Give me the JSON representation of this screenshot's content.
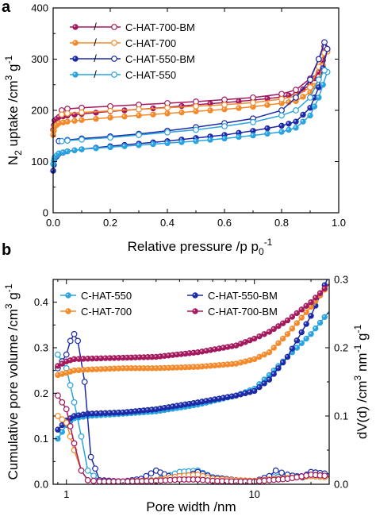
{
  "panel_labels": [
    "a",
    "b"
  ],
  "colors": {
    "c550": "#29a3e0",
    "c550bm": "#1c2aa6",
    "c700": "#f4892a",
    "c700bm": "#a3195e"
  },
  "chart_data": [
    {
      "type": "line",
      "panel": "a",
      "xlabel": "Relative pressure /p p0-1",
      "xlabel_parts": {
        "main": "Relative pressure /p p",
        "sub": "0",
        "sup": "-1"
      },
      "ylabel": "N2 uptake /cm3 g-1",
      "ylabel_parts": {
        "a": "N",
        "sub": "2",
        "b": " uptake /cm",
        "sup1": "3",
        "c": " g",
        "sup2": "-1"
      },
      "xlim": [
        0.0,
        1.0
      ],
      "ylim": [
        0,
        400
      ],
      "xticks": [
        "0.0",
        "0.2",
        "0.4",
        "0.6",
        "0.8",
        "1.0"
      ],
      "yticks": [
        "0",
        "100",
        "200",
        "300",
        "400"
      ],
      "legend": {
        "position": "top-left",
        "separator": "/"
      },
      "series": [
        {
          "name": "C-HAT-700-BM",
          "color": "#a3195e",
          "adsorption": [
            [
              0.0,
              162
            ],
            [
              0.005,
              180
            ],
            [
              0.02,
              187
            ],
            [
              0.05,
              190
            ],
            [
              0.1,
              193
            ],
            [
              0.2,
              198
            ],
            [
              0.3,
              202
            ],
            [
              0.4,
              206
            ],
            [
              0.5,
              211
            ],
            [
              0.6,
              215
            ],
            [
              0.7,
              220
            ],
            [
              0.8,
              226
            ],
            [
              0.85,
              232
            ],
            [
              0.9,
              250
            ],
            [
              0.93,
              275
            ],
            [
              0.96,
              320
            ]
          ],
          "desorption": [
            [
              0.96,
              320
            ],
            [
              0.95,
              325
            ],
            [
              0.93,
              300
            ],
            [
              0.9,
              262
            ],
            [
              0.85,
              240
            ],
            [
              0.8,
              232
            ],
            [
              0.7,
              225
            ],
            [
              0.6,
              221
            ],
            [
              0.5,
              217
            ],
            [
              0.4,
              214
            ],
            [
              0.3,
              211
            ],
            [
              0.2,
              208
            ],
            [
              0.1,
              205
            ],
            [
              0.05,
              203
            ],
            [
              0.03,
              200
            ]
          ]
        },
        {
          "name": "C-HAT-700",
          "color": "#f4892a",
          "adsorption": [
            [
              0.0,
              152
            ],
            [
              0.005,
              168
            ],
            [
              0.02,
              175
            ],
            [
              0.05,
              178
            ],
            [
              0.1,
              181
            ],
            [
              0.2,
              186
            ],
            [
              0.3,
              190
            ],
            [
              0.4,
              194
            ],
            [
              0.5,
              198
            ],
            [
              0.6,
              202
            ],
            [
              0.7,
              207
            ],
            [
              0.8,
              214
            ],
            [
              0.85,
              218
            ],
            [
              0.9,
              235
            ],
            [
              0.93,
              260
            ],
            [
              0.96,
              315
            ]
          ],
          "desorption": [
            [
              0.96,
              315
            ],
            [
              0.95,
              312
            ],
            [
              0.93,
              285
            ],
            [
              0.9,
              245
            ],
            [
              0.85,
              228
            ],
            [
              0.8,
              222
            ],
            [
              0.7,
              215
            ],
            [
              0.6,
              211
            ],
            [
              0.5,
              208
            ],
            [
              0.4,
              205
            ],
            [
              0.3,
              202
            ],
            [
              0.2,
              199
            ],
            [
              0.1,
              196
            ],
            [
              0.05,
              194
            ],
            [
              0.03,
              192
            ]
          ]
        },
        {
          "name": "C-HAT-550-BM",
          "color": "#1c2aa6",
          "adsorption": [
            [
              0.0,
              82
            ],
            [
              0.005,
              105
            ],
            [
              0.02,
              115
            ],
            [
              0.05,
              120
            ],
            [
              0.1,
              124
            ],
            [
              0.2,
              130
            ],
            [
              0.3,
              135
            ],
            [
              0.4,
              140
            ],
            [
              0.5,
              146
            ],
            [
              0.6,
              152
            ],
            [
              0.7,
              160
            ],
            [
              0.8,
              170
            ],
            [
              0.85,
              178
            ],
            [
              0.9,
              205
            ],
            [
              0.93,
              245
            ],
            [
              0.96,
              320
            ]
          ],
          "desorption": [
            [
              0.96,
              320
            ],
            [
              0.95,
              333
            ],
            [
              0.93,
              300
            ],
            [
              0.9,
              260
            ],
            [
              0.85,
              225
            ],
            [
              0.8,
              200
            ],
            [
              0.7,
              184
            ],
            [
              0.6,
              175
            ],
            [
              0.5,
              167
            ],
            [
              0.4,
              160
            ],
            [
              0.3,
              154
            ],
            [
              0.2,
              149
            ],
            [
              0.1,
              145
            ],
            [
              0.05,
              142
            ],
            [
              0.02,
              140
            ]
          ]
        },
        {
          "name": "C-HAT-550",
          "color": "#29a3e0",
          "adsorption": [
            [
              0.0,
              95
            ],
            [
              0.005,
              108
            ],
            [
              0.02,
              116
            ],
            [
              0.05,
              120
            ],
            [
              0.1,
              124
            ],
            [
              0.2,
              128
            ],
            [
              0.3,
              132
            ],
            [
              0.4,
              136
            ],
            [
              0.5,
              140
            ],
            [
              0.6,
              145
            ],
            [
              0.7,
              151
            ],
            [
              0.8,
              158
            ],
            [
              0.85,
              166
            ],
            [
              0.9,
              190
            ],
            [
              0.93,
              225
            ],
            [
              0.96,
              275
            ]
          ],
          "desorption": [
            [
              0.96,
              275
            ],
            [
              0.95,
              278
            ],
            [
              0.93,
              260
            ],
            [
              0.9,
              225
            ],
            [
              0.85,
              200
            ],
            [
              0.8,
              190
            ],
            [
              0.7,
              177
            ],
            [
              0.6,
              169
            ],
            [
              0.5,
              162
            ],
            [
              0.4,
              157
            ],
            [
              0.3,
              152
            ],
            [
              0.2,
              147
            ],
            [
              0.1,
              143
            ],
            [
              0.05,
              141
            ],
            [
              0.03,
              140
            ]
          ]
        }
      ]
    },
    {
      "type": "line",
      "panel": "b",
      "xscale": "log",
      "xlabel": "Pore width /nm",
      "ylabel_left": "Cumulative pore volume /cm3 g-1",
      "ylabel_left_parts": {
        "a": "Cumulative pore volume /cm",
        "sup1": "3",
        "b": " g",
        "sup2": "-1"
      },
      "ylabel_right": "dV(d) /cm3 nm-1 g-1",
      "ylabel_right_parts": {
        "a": "dV(d) /cm",
        "sup1": "3",
        "b": " nm",
        "sup2": "-1",
        "c": " g",
        "sup3": "-1"
      },
      "xlim": [
        0.85,
        25
      ],
      "ylim_left": [
        0,
        0.45
      ],
      "ylim_right": [
        0,
        0.3
      ],
      "xticks": [
        "1",
        "10"
      ],
      "yticks_left": [
        "0.0",
        "0.1",
        "0.2",
        "0.3",
        "0.4"
      ],
      "yticks_right": [
        "0.0",
        "0.1",
        "0.2",
        "0.3"
      ],
      "legend": {
        "position": "top-left",
        "columns": 2
      },
      "series": [
        {
          "name": "C-HAT-550",
          "color": "#29a3e0",
          "cumulative": [
            [
              0.9,
              0.1
            ],
            [
              1.0,
              0.13
            ],
            [
              1.1,
              0.145
            ],
            [
              1.3,
              0.15
            ],
            [
              2,
              0.155
            ],
            [
              3,
              0.16
            ],
            [
              5,
              0.175
            ],
            [
              8,
              0.195
            ],
            [
              10,
              0.21
            ],
            [
              12,
              0.24
            ],
            [
              15,
              0.28
            ],
            [
              20,
              0.33
            ],
            [
              25,
              0.38
            ]
          ],
          "differential": [
            [
              0.9,
              0.19
            ],
            [
              1.0,
              0.17
            ],
            [
              1.1,
              0.12
            ],
            [
              1.2,
              0.07
            ],
            [
              1.3,
              0.02
            ],
            [
              1.5,
              0.005
            ],
            [
              2,
              0.004
            ],
            [
              3,
              0.006
            ],
            [
              4,
              0.018
            ],
            [
              5,
              0.02
            ],
            [
              6,
              0.01
            ],
            [
              8,
              0.006
            ],
            [
              10,
              0.004
            ],
            [
              12,
              0.01
            ],
            [
              15,
              0.012
            ],
            [
              20,
              0.012
            ],
            [
              25,
              0.01
            ]
          ]
        },
        {
          "name": "C-HAT-550-BM",
          "color": "#1c2aa6",
          "cumulative": [
            [
              0.9,
              0.12
            ],
            [
              1.0,
              0.14
            ],
            [
              1.1,
              0.15
            ],
            [
              1.3,
              0.155
            ],
            [
              2,
              0.158
            ],
            [
              3,
              0.165
            ],
            [
              5,
              0.18
            ],
            [
              8,
              0.195
            ],
            [
              10,
              0.205
            ],
            [
              12,
              0.23
            ],
            [
              15,
              0.28
            ],
            [
              20,
              0.37
            ],
            [
              25,
              0.46
            ]
          ],
          "differential": [
            [
              0.9,
              0.17
            ],
            [
              1.0,
              0.19
            ],
            [
              1.05,
              0.21
            ],
            [
              1.1,
              0.22
            ],
            [
              1.15,
              0.21
            ],
            [
              1.25,
              0.15
            ],
            [
              1.35,
              0.04
            ],
            [
              1.5,
              0.006
            ],
            [
              2,
              0.004
            ],
            [
              2.5,
              0.008
            ],
            [
              3,
              0.02
            ],
            [
              3.5,
              0.012
            ],
            [
              4,
              0.008
            ],
            [
              5,
              0.018
            ],
            [
              6,
              0.01
            ],
            [
              8,
              0.006
            ],
            [
              10,
              0.004
            ],
            [
              12,
              0.012
            ],
            [
              13,
              0.02
            ],
            [
              15,
              0.014
            ],
            [
              18,
              0.01
            ],
            [
              20,
              0.018
            ],
            [
              25,
              0.015
            ]
          ]
        },
        {
          "name": "C-HAT-700",
          "color": "#f4892a",
          "cumulative": [
            [
              0.9,
              0.24
            ],
            [
              1.0,
              0.245
            ],
            [
              1.1,
              0.25
            ],
            [
              1.3,
              0.252
            ],
            [
              2,
              0.255
            ],
            [
              3,
              0.255
            ],
            [
              5,
              0.258
            ],
            [
              8,
              0.265
            ],
            [
              10,
              0.275
            ],
            [
              12,
              0.29
            ],
            [
              15,
              0.33
            ],
            [
              20,
              0.39
            ],
            [
              25,
              0.44
            ]
          ],
          "differential": [
            [
              0.9,
              0.1
            ],
            [
              1.0,
              0.09
            ],
            [
              1.1,
              0.05
            ],
            [
              1.2,
              0.02
            ],
            [
              1.3,
              0.006
            ],
            [
              1.5,
              0.004
            ],
            [
              2,
              0.004
            ],
            [
              3,
              0.006
            ],
            [
              4,
              0.012
            ],
            [
              5,
              0.014
            ],
            [
              6,
              0.008
            ],
            [
              8,
              0.006
            ],
            [
              10,
              0.005
            ],
            [
              12,
              0.007
            ],
            [
              15,
              0.009
            ],
            [
              20,
              0.012
            ],
            [
              25,
              0.01
            ]
          ]
        },
        {
          "name": "C-HAT-700-BM",
          "color": "#a3195e",
          "cumulative": [
            [
              0.9,
              0.26
            ],
            [
              1.0,
              0.27
            ],
            [
              1.1,
              0.275
            ],
            [
              1.3,
              0.276
            ],
            [
              2,
              0.278
            ],
            [
              3,
              0.28
            ],
            [
              5,
              0.29
            ],
            [
              8,
              0.305
            ],
            [
              10,
              0.32
            ],
            [
              12,
              0.335
            ],
            [
              15,
              0.36
            ],
            [
              20,
              0.4
            ],
            [
              25,
              0.44
            ]
          ],
          "differential": [
            [
              0.9,
              0.13
            ],
            [
              1.0,
              0.11
            ],
            [
              1.1,
              0.06
            ],
            [
              1.2,
              0.02
            ],
            [
              1.3,
              0.006
            ],
            [
              1.5,
              0.004
            ],
            [
              2,
              0.004
            ],
            [
              3,
              0.005
            ],
            [
              4,
              0.007
            ],
            [
              5,
              0.007
            ],
            [
              6,
              0.005
            ],
            [
              8,
              0.004
            ],
            [
              10,
              0.004
            ],
            [
              12,
              0.006
            ],
            [
              15,
              0.008
            ],
            [
              20,
              0.014
            ],
            [
              25,
              0.012
            ]
          ]
        }
      ]
    }
  ]
}
